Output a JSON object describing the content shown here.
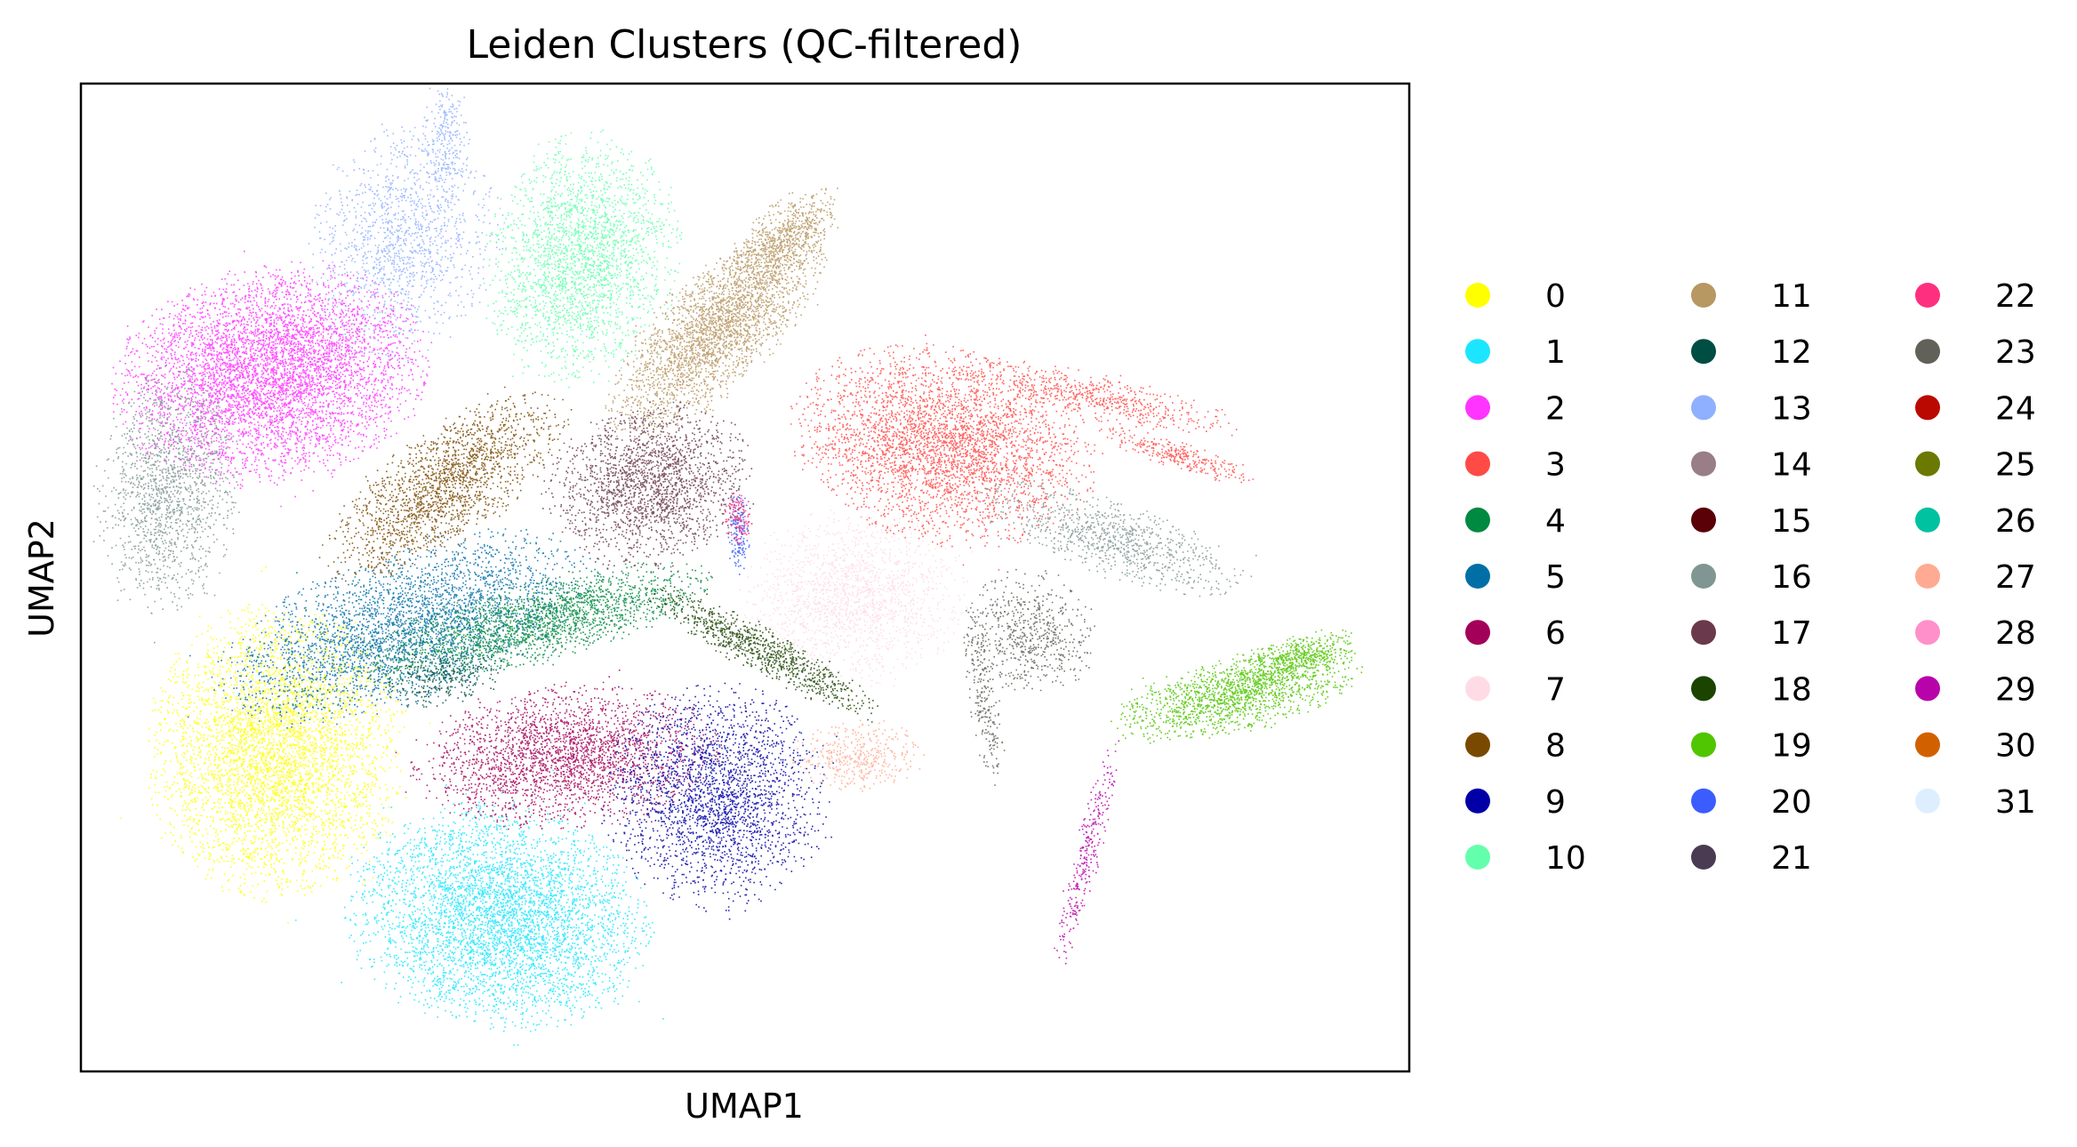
{
  "chart_data": {
    "type": "scatter",
    "title": "Leiden Clusters (QC-filtered)",
    "xlabel": "UMAP1",
    "ylabel": "UMAP2",
    "ticks_shown": false,
    "grid": false,
    "legend_placement": "right",
    "legend_columns": 3,
    "series": [
      {
        "name": "0",
        "color": "#ffff00"
      },
      {
        "name": "1",
        "color": "#1ce6ff"
      },
      {
        "name": "2",
        "color": "#ff34ff"
      },
      {
        "name": "3",
        "color": "#ff4a46"
      },
      {
        "name": "4",
        "color": "#008941"
      },
      {
        "name": "5",
        "color": "#006fa6"
      },
      {
        "name": "6",
        "color": "#a30059"
      },
      {
        "name": "7",
        "color": "#ffdbe5"
      },
      {
        "name": "8",
        "color": "#7a4900"
      },
      {
        "name": "9",
        "color": "#0000a6"
      },
      {
        "name": "10",
        "color": "#63ffac"
      },
      {
        "name": "11",
        "color": "#b79762"
      },
      {
        "name": "12",
        "color": "#004d43"
      },
      {
        "name": "13",
        "color": "#8fb0ff"
      },
      {
        "name": "14",
        "color": "#997d87"
      },
      {
        "name": "15",
        "color": "#5a0007"
      },
      {
        "name": "16",
        "color": "#809693"
      },
      {
        "name": "17",
        "color": "#6a3a4c"
      },
      {
        "name": "18",
        "color": "#1b4400"
      },
      {
        "name": "19",
        "color": "#4fc601"
      },
      {
        "name": "20",
        "color": "#3b5dff"
      },
      {
        "name": "21",
        "color": "#4a3b53"
      },
      {
        "name": "22",
        "color": "#ff2f80"
      },
      {
        "name": "23",
        "color": "#61615a"
      },
      {
        "name": "24",
        "color": "#ba0900"
      },
      {
        "name": "25",
        "color": "#6b7900"
      },
      {
        "name": "26",
        "color": "#00c2a0"
      },
      {
        "name": "27",
        "color": "#ffaa92"
      },
      {
        "name": "28",
        "color": "#ff90c9"
      },
      {
        "name": "29",
        "color": "#b903aa"
      },
      {
        "name": "30",
        "color": "#d16100"
      },
      {
        "name": "31",
        "color": "#ddefff"
      }
    ]
  }
}
